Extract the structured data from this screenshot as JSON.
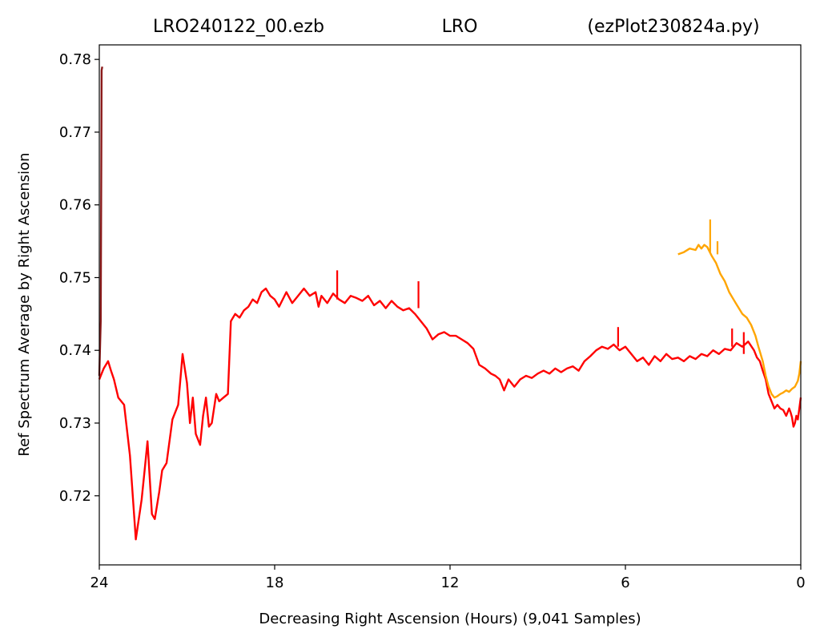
{
  "chart_data": {
    "type": "line",
    "title_parts": [
      "LRO240122_00.ezb",
      "LRO",
      "(ezPlot230824a.py)"
    ],
    "xlabel": "Decreasing Right Ascension (Hours) (9,041 Samples)",
    "ylabel": "Ref Spectrum Average by Right Ascension",
    "xlim": [
      24,
      0
    ],
    "ylim": [
      0.7105,
      0.782
    ],
    "x_ticks": [
      24,
      18,
      12,
      6,
      0
    ],
    "y_ticks": [
      0.72,
      0.73,
      0.74,
      0.75,
      0.76,
      0.77,
      0.78
    ],
    "grid": false,
    "series": [
      {
        "color": "#8b1a1a",
        "x": [
          24.0,
          23.95,
          23.92,
          23.9
        ],
        "y": [
          0.7365,
          0.744,
          0.7785,
          0.779
        ]
      },
      {
        "color": "#ff0000",
        "x": [
          24.0,
          23.85,
          23.7,
          23.6,
          23.5,
          23.35,
          23.15,
          22.95,
          22.75,
          22.55,
          22.45,
          22.35,
          22.2,
          22.1,
          21.95,
          21.85,
          21.7,
          21.5,
          21.3,
          21.15,
          21.0,
          20.9,
          20.8,
          20.7,
          20.55,
          20.45,
          20.35,
          20.25,
          20.15,
          20.0,
          19.9,
          19.75,
          19.6,
          19.5,
          19.35,
          19.2,
          19.05,
          18.9,
          18.75,
          18.6,
          18.45,
          18.3,
          18.15,
          18.0,
          17.85,
          17.6,
          17.4,
          17.2,
          17.0,
          16.8,
          16.6,
          16.5,
          16.4,
          16.2,
          16.0,
          15.8,
          15.6,
          15.4,
          15.2,
          15.0,
          14.8,
          14.6,
          14.4,
          14.2,
          14.0,
          13.8,
          13.6,
          13.4,
          13.2,
          13.0,
          12.8,
          12.6,
          12.4,
          12.2,
          12.0,
          11.8,
          11.6,
          11.4,
          11.2,
          11.0,
          10.8,
          10.6,
          10.45,
          10.3,
          10.15,
          10.0,
          9.8,
          9.6,
          9.4,
          9.2,
          9.0,
          8.8,
          8.6,
          8.4,
          8.2,
          8.0,
          7.8,
          7.6,
          7.4,
          7.2,
          7.0,
          6.8,
          6.6,
          6.4,
          6.2,
          6.0,
          5.8,
          5.6,
          5.4,
          5.2,
          5.0,
          4.8,
          4.6,
          4.4,
          4.2,
          4.0,
          3.8,
          3.6,
          3.4,
          3.2,
          3.0,
          2.8,
          2.6,
          2.4,
          2.2,
          2.0,
          1.8,
          1.6,
          1.5,
          1.4,
          1.3,
          1.2,
          1.1,
          1.0,
          0.9,
          0.8,
          0.7,
          0.6,
          0.5,
          0.45,
          0.4,
          0.35,
          0.3,
          0.25,
          0.2,
          0.15,
          0.1,
          0.05,
          0.0
        ],
        "y": [
          0.736,
          0.7375,
          0.7385,
          0.7372,
          0.736,
          0.7335,
          0.7325,
          0.7255,
          0.714,
          0.7195,
          0.7235,
          0.7275,
          0.7175,
          0.7168,
          0.7205,
          0.7235,
          0.7245,
          0.7305,
          0.7325,
          0.7395,
          0.7355,
          0.73,
          0.7335,
          0.7285,
          0.727,
          0.731,
          0.7335,
          0.7295,
          0.73,
          0.734,
          0.733,
          0.7335,
          0.734,
          0.744,
          0.745,
          0.7445,
          0.7455,
          0.746,
          0.747,
          0.7465,
          0.748,
          0.7485,
          0.7475,
          0.747,
          0.746,
          0.748,
          0.7465,
          0.7475,
          0.7485,
          0.7475,
          0.748,
          0.746,
          0.7475,
          0.7465,
          0.7478,
          0.747,
          0.7465,
          0.7475,
          0.7472,
          0.7468,
          0.7475,
          0.7462,
          0.7468,
          0.7458,
          0.7468,
          0.746,
          0.7455,
          0.7458,
          0.745,
          0.744,
          0.743,
          0.7415,
          0.7422,
          0.7425,
          0.742,
          0.742,
          0.7415,
          0.741,
          0.7402,
          0.738,
          0.7375,
          0.7368,
          0.7365,
          0.736,
          0.7345,
          0.736,
          0.735,
          0.736,
          0.7365,
          0.7362,
          0.7368,
          0.7372,
          0.7368,
          0.7375,
          0.737,
          0.7375,
          0.7378,
          0.7372,
          0.7385,
          0.7392,
          0.74,
          0.7405,
          0.7402,
          0.7408,
          0.74,
          0.7405,
          0.7395,
          0.7385,
          0.739,
          0.738,
          0.7392,
          0.7385,
          0.7395,
          0.7388,
          0.739,
          0.7385,
          0.7392,
          0.7388,
          0.7395,
          0.7392,
          0.74,
          0.7395,
          0.7402,
          0.74,
          0.741,
          0.7405,
          0.7412,
          0.74,
          0.739,
          0.7385,
          0.7372,
          0.736,
          0.734,
          0.733,
          0.732,
          0.7325,
          0.732,
          0.7318,
          0.731,
          0.7315,
          0.732,
          0.7315,
          0.7308,
          0.7295,
          0.73,
          0.731,
          0.7305,
          0.732,
          0.7335
        ]
      },
      {
        "color": "#ffa500",
        "x": [
          4.2,
          4.0,
          3.8,
          3.6,
          3.5,
          3.4,
          3.3,
          3.2,
          3.05,
          2.9,
          2.75,
          2.6,
          2.45,
          2.3,
          2.15,
          2.0,
          1.85,
          1.7,
          1.55,
          1.45,
          1.3,
          1.2,
          1.1,
          1.0,
          0.9,
          0.8,
          0.7,
          0.6,
          0.5,
          0.4,
          0.3,
          0.2,
          0.1,
          0.05,
          0.0
        ],
        "y": [
          0.7532,
          0.7535,
          0.754,
          0.7538,
          0.7545,
          0.754,
          0.7545,
          0.7542,
          0.753,
          0.752,
          0.7505,
          0.7495,
          0.748,
          0.747,
          0.746,
          0.745,
          0.7445,
          0.7435,
          0.742,
          0.7405,
          0.7385,
          0.7365,
          0.735,
          0.734,
          0.7335,
          0.7337,
          0.734,
          0.7342,
          0.7345,
          0.7343,
          0.7347,
          0.735,
          0.7358,
          0.7368,
          0.7385
        ]
      }
    ],
    "spikes": [
      {
        "color": "#ff0000",
        "x": 15.86,
        "y0": 0.747,
        "y1": 0.751
      },
      {
        "color": "#ff0000",
        "x": 13.08,
        "y0": 0.7458,
        "y1": 0.7495
      },
      {
        "color": "#ff0000",
        "x": 6.25,
        "y0": 0.7405,
        "y1": 0.7432
      },
      {
        "color": "#ff0000",
        "x": 2.35,
        "y0": 0.7405,
        "y1": 0.743
      },
      {
        "color": "#ff0000",
        "x": 1.95,
        "y0": 0.7395,
        "y1": 0.7425
      },
      {
        "color": "#ffa500",
        "x": 3.1,
        "y0": 0.7535,
        "y1": 0.758
      },
      {
        "color": "#ffa500",
        "x": 2.85,
        "y0": 0.7532,
        "y1": 0.755
      }
    ]
  }
}
